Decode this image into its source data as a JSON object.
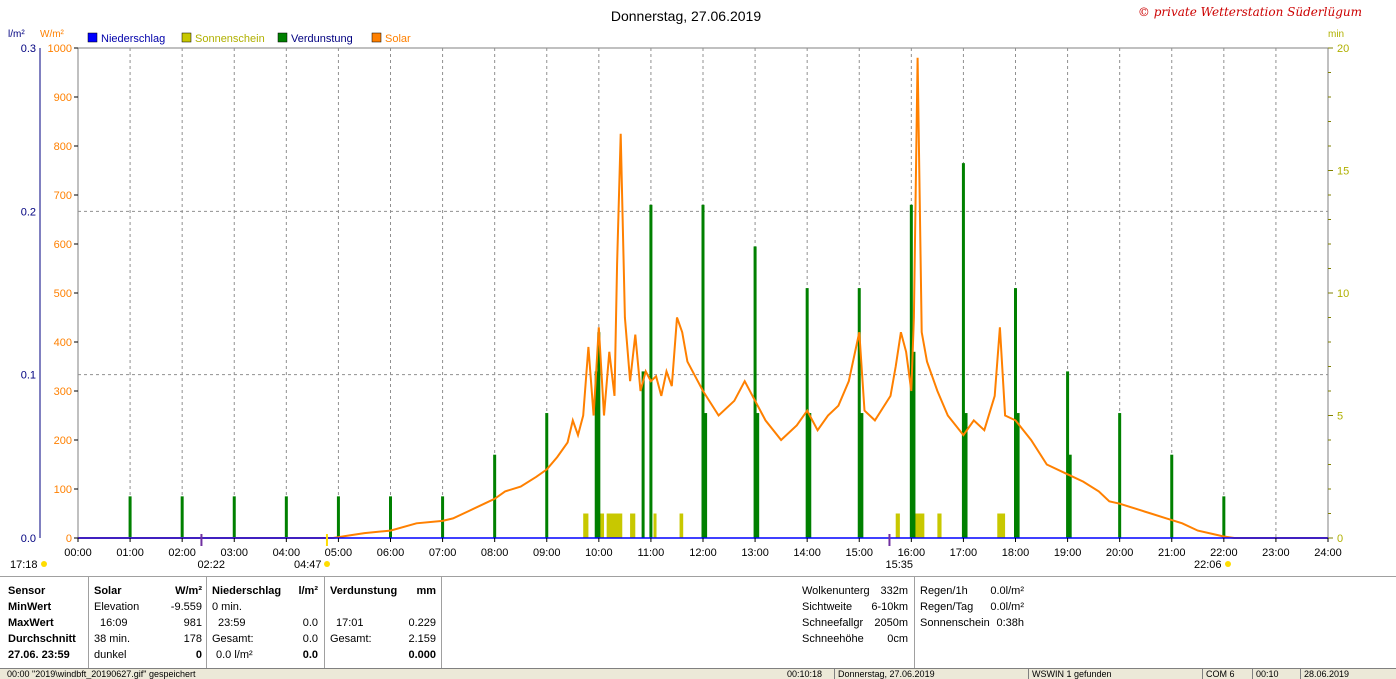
{
  "chart_data": {
    "type": "bar+line",
    "title": "Donnerstag, 27.06.2019",
    "watermark": "© private Wetterstation Süderlügum",
    "left_axis_units": {
      "rain": "l/m²",
      "solar": "W/m²"
    },
    "right_axis_unit": "min",
    "rain_axis": {
      "ylim": [
        0,
        0.3
      ],
      "ticks": [
        "0.0",
        "0.1",
        "0.2",
        "0.3"
      ]
    },
    "solar_axis": {
      "ylim": [
        0,
        1000
      ],
      "ticks": [
        "0",
        "100",
        "200",
        "300",
        "400",
        "500",
        "600",
        "700",
        "800",
        "900",
        "1000"
      ]
    },
    "minutes_axis": {
      "ylim": [
        0,
        20
      ],
      "ticks": [
        "0",
        "5",
        "10",
        "15",
        "20"
      ]
    },
    "x_axis": {
      "ticks": [
        "00:00",
        "01:00",
        "02:00",
        "03:00",
        "04:00",
        "05:00",
        "06:00",
        "07:00",
        "08:00",
        "09:00",
        "10:00",
        "11:00",
        "12:00",
        "13:00",
        "14:00",
        "15:00",
        "16:00",
        "17:00",
        "18:00",
        "19:00",
        "20:00",
        "21:00",
        "22:00",
        "23:00",
        "24:00"
      ]
    },
    "legend": [
      {
        "name": "Niederschlag",
        "color": "#0000ff",
        "text_color": "#0000aa"
      },
      {
        "name": "Sonnenschein",
        "color": "#c8c800",
        "text_color": "#b0b000"
      },
      {
        "name": "Verdunstung",
        "color": "#008000",
        "text_color": "#000080"
      },
      {
        "name": "Solar",
        "color": "#ff8000",
        "text_color": "#ff8000"
      }
    ],
    "grid": true,
    "colors": {
      "solar": "#ff8000",
      "evaporation": "#008000",
      "sunshine": "#c8c800",
      "rain": "#0000ff",
      "axis_left": "#000080"
    },
    "series": [
      {
        "name": "Solar",
        "unit": "W/m²",
        "points": [
          [
            0,
            0
          ],
          [
            4.9,
            0
          ],
          [
            5.2,
            5
          ],
          [
            5.5,
            10
          ],
          [
            6.0,
            15
          ],
          [
            6.5,
            30
          ],
          [
            7.0,
            35
          ],
          [
            7.2,
            40
          ],
          [
            7.5,
            55
          ],
          [
            7.8,
            70
          ],
          [
            8.0,
            80
          ],
          [
            8.2,
            95
          ],
          [
            8.5,
            105
          ],
          [
            8.8,
            125
          ],
          [
            9.0,
            140
          ],
          [
            9.2,
            165
          ],
          [
            9.4,
            195
          ],
          [
            9.5,
            240
          ],
          [
            9.6,
            210
          ],
          [
            9.7,
            250
          ],
          [
            9.8,
            390
          ],
          [
            9.9,
            250
          ],
          [
            10.0,
            430
          ],
          [
            10.1,
            250
          ],
          [
            10.2,
            380
          ],
          [
            10.3,
            290
          ],
          [
            10.35,
            560
          ],
          [
            10.42,
            825
          ],
          [
            10.5,
            450
          ],
          [
            10.6,
            320
          ],
          [
            10.7,
            415
          ],
          [
            10.8,
            300
          ],
          [
            10.9,
            340
          ],
          [
            11.0,
            320
          ],
          [
            11.1,
            330
          ],
          [
            11.2,
            290
          ],
          [
            11.3,
            340
          ],
          [
            11.4,
            310
          ],
          [
            11.5,
            450
          ],
          [
            11.6,
            420
          ],
          [
            11.7,
            360
          ],
          [
            11.9,
            320
          ],
          [
            12.0,
            300
          ],
          [
            12.3,
            250
          ],
          [
            12.6,
            280
          ],
          [
            12.8,
            320
          ],
          [
            13.0,
            280
          ],
          [
            13.2,
            240
          ],
          [
            13.5,
            200
          ],
          [
            13.8,
            230
          ],
          [
            14.0,
            260
          ],
          [
            14.2,
            220
          ],
          [
            14.4,
            250
          ],
          [
            14.6,
            270
          ],
          [
            14.8,
            320
          ],
          [
            15.0,
            420
          ],
          [
            15.1,
            260
          ],
          [
            15.3,
            240
          ],
          [
            15.6,
            290
          ],
          [
            15.7,
            350
          ],
          [
            15.8,
            420
          ],
          [
            15.9,
            380
          ],
          [
            16.0,
            300
          ],
          [
            16.05,
            450
          ],
          [
            16.12,
            980
          ],
          [
            16.2,
            420
          ],
          [
            16.3,
            360
          ],
          [
            16.5,
            300
          ],
          [
            16.7,
            250
          ],
          [
            17.0,
            210
          ],
          [
            17.2,
            240
          ],
          [
            17.4,
            220
          ],
          [
            17.6,
            290
          ],
          [
            17.7,
            430
          ],
          [
            17.8,
            250
          ],
          [
            18.0,
            240
          ],
          [
            18.3,
            200
          ],
          [
            18.6,
            150
          ],
          [
            19.0,
            130
          ],
          [
            19.3,
            115
          ],
          [
            19.6,
            95
          ],
          [
            19.8,
            75
          ],
          [
            20.0,
            70
          ],
          [
            20.3,
            60
          ],
          [
            20.6,
            50
          ],
          [
            20.9,
            40
          ],
          [
            21.2,
            30
          ],
          [
            21.5,
            15
          ],
          [
            21.8,
            8
          ],
          [
            22.0,
            3
          ],
          [
            22.2,
            0
          ],
          [
            24,
            0
          ]
        ]
      },
      {
        "name": "Verdunstung",
        "unit": "min",
        "times": [
          1,
          2,
          3,
          4,
          5,
          6,
          7,
          8,
          9,
          10,
          11,
          12,
          13,
          14,
          15,
          16,
          17,
          18,
          19,
          20,
          21,
          22
        ],
        "values": [
          1.7,
          1.7,
          1.7,
          1.7,
          1.7,
          1.7,
          1.7,
          3.4,
          5.1,
          8.4,
          13.6,
          13.6,
          11.9,
          10.2,
          10.2,
          13.6,
          15.3,
          10.2,
          6.8,
          5.1,
          3.4,
          1.7
        ],
        "extra_bars": [
          {
            "t": 9.95,
            "v": 6.8
          },
          {
            "t": 10.85,
            "v": 6.8
          },
          {
            "t": 12.05,
            "v": 5.1
          },
          {
            "t": 13.05,
            "v": 5.1
          },
          {
            "t": 14.05,
            "v": 5.1
          },
          {
            "t": 15.05,
            "v": 5.1
          },
          {
            "t": 16.05,
            "v": 7.6
          },
          {
            "t": 17.05,
            "v": 5.1
          },
          {
            "t": 18.05,
            "v": 5.1
          },
          {
            "t": 19.05,
            "v": 3.4
          }
        ]
      },
      {
        "name": "Sonnenschein",
        "unit": "min",
        "spans": [
          [
            9.7,
            9.8,
            1.0
          ],
          [
            10.0,
            10.1,
            1.0
          ],
          [
            10.15,
            10.45,
            1.0
          ],
          [
            10.6,
            10.7,
            1.0
          ],
          [
            11.05,
            11.1,
            1.0
          ],
          [
            11.55,
            11.62,
            1.0
          ],
          [
            15.7,
            15.78,
            1.0
          ],
          [
            16.05,
            16.25,
            1.0
          ],
          [
            16.5,
            16.58,
            1.0
          ],
          [
            17.65,
            17.8,
            1.0
          ]
        ]
      }
    ],
    "markers": {
      "sunrise_left": "17:18",
      "moon_mark": "02:22",
      "sunrise": "04:47",
      "culmination": "15:35",
      "sunset": "22:06"
    }
  },
  "panel": {
    "sensor": {
      "header": "Sensor",
      "rows": [
        "MinWert",
        "MaxWert",
        "Durchschnitt",
        "27.06.  23:59"
      ]
    },
    "solar": {
      "header": "Solar",
      "unit": "W/m²",
      "rows": [
        [
          "Elevation",
          "-9.559"
        ],
        [
          "16:09",
          "981"
        ],
        [
          "38 min.",
          "178"
        ],
        [
          "dunkel",
          "0"
        ]
      ]
    },
    "rain": {
      "header": "Niederschlag",
      "unit": "l/m²",
      "rows": [
        [
          "0 min.",
          ""
        ],
        [
          "23:59",
          "0.0"
        ],
        [
          "Gesamt:",
          "0.0"
        ],
        [
          "0.0 l/m²",
          "0.0"
        ]
      ]
    },
    "evap": {
      "header": "Verdunstung",
      "unit": "mm",
      "rows": [
        [
          "",
          ""
        ],
        [
          "17:01",
          "0.229"
        ],
        [
          "Gesamt:",
          "2.159"
        ],
        [
          "",
          "0.000"
        ]
      ]
    },
    "weather": {
      "rows": [
        [
          "Wolkenunterg",
          "332m"
        ],
        [
          "Sichtweite",
          "6-10km"
        ],
        [
          "Schneefallgr",
          "2050m"
        ],
        [
          "Schneehöhe",
          "0cm"
        ]
      ]
    },
    "rainstats": {
      "rows": [
        [
          "Regen/1h",
          "0.0l/m²"
        ],
        [
          "Regen/Tag",
          "0.0l/m²"
        ],
        [
          "Sonnenschein",
          "0:38h"
        ]
      ]
    }
  },
  "statusbar": {
    "left": "00:00  \"2019\\windbft_20190627.gif\"  gespeichert",
    "time": "00:10:18",
    "date": "Donnerstag, 27.06.2019",
    "device": "WSWIN 1 gefunden",
    "com": "COM 6",
    "clock": "00:10",
    "date2": "28.06.2019"
  }
}
